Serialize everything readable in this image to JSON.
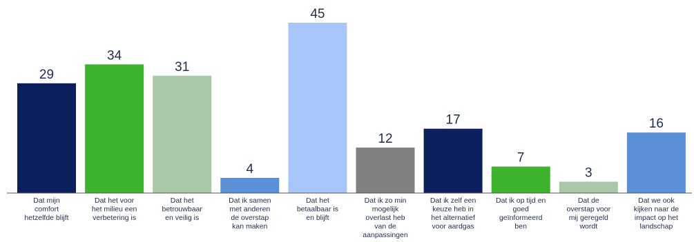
{
  "chart_data": {
    "type": "bar",
    "title": "",
    "xlabel": "",
    "ylabel": "",
    "ylim": [
      0,
      45
    ],
    "grid": false,
    "legend": "none",
    "categories": [
      [
        "Dat mijn",
        "comfort",
        "hetzelfde blijft"
      ],
      [
        "Dat het voor",
        "het milieu een",
        "verbetering is"
      ],
      [
        "Dat het",
        "betrouwbaar",
        "en veilig is"
      ],
      [
        "Dat ik samen",
        "met anderen",
        "de overstap",
        "kan maken"
      ],
      [
        "Dat het",
        "betaalbaar is",
        "en blijft"
      ],
      [
        "Dat ik zo min",
        "mogelijk",
        "overlast heb",
        "van de",
        "aanpassingen"
      ],
      [
        "Dat ik zelf een",
        "keuze heb in",
        "het alternatief",
        "voor aardgas"
      ],
      [
        "Dat ik op tijd en",
        "goed",
        "geïnformeerd",
        "ben"
      ],
      [
        "Dat de",
        "overstap voor",
        "mij geregeld",
        "wordt"
      ],
      [
        "Dat we ook",
        "kijken naar de",
        "impact op het",
        "landschap"
      ]
    ],
    "values": [
      29,
      34,
      31,
      4,
      45,
      12,
      17,
      7,
      3,
      16
    ],
    "colors": [
      "#0b1f5c",
      "#3db22d",
      "#a8c8a8",
      "#5b8fd6",
      "#a9c6fb",
      "#808080",
      "#0b1f5c",
      "#3db22d",
      "#a8c8a8",
      "#5b8fd6"
    ]
  }
}
